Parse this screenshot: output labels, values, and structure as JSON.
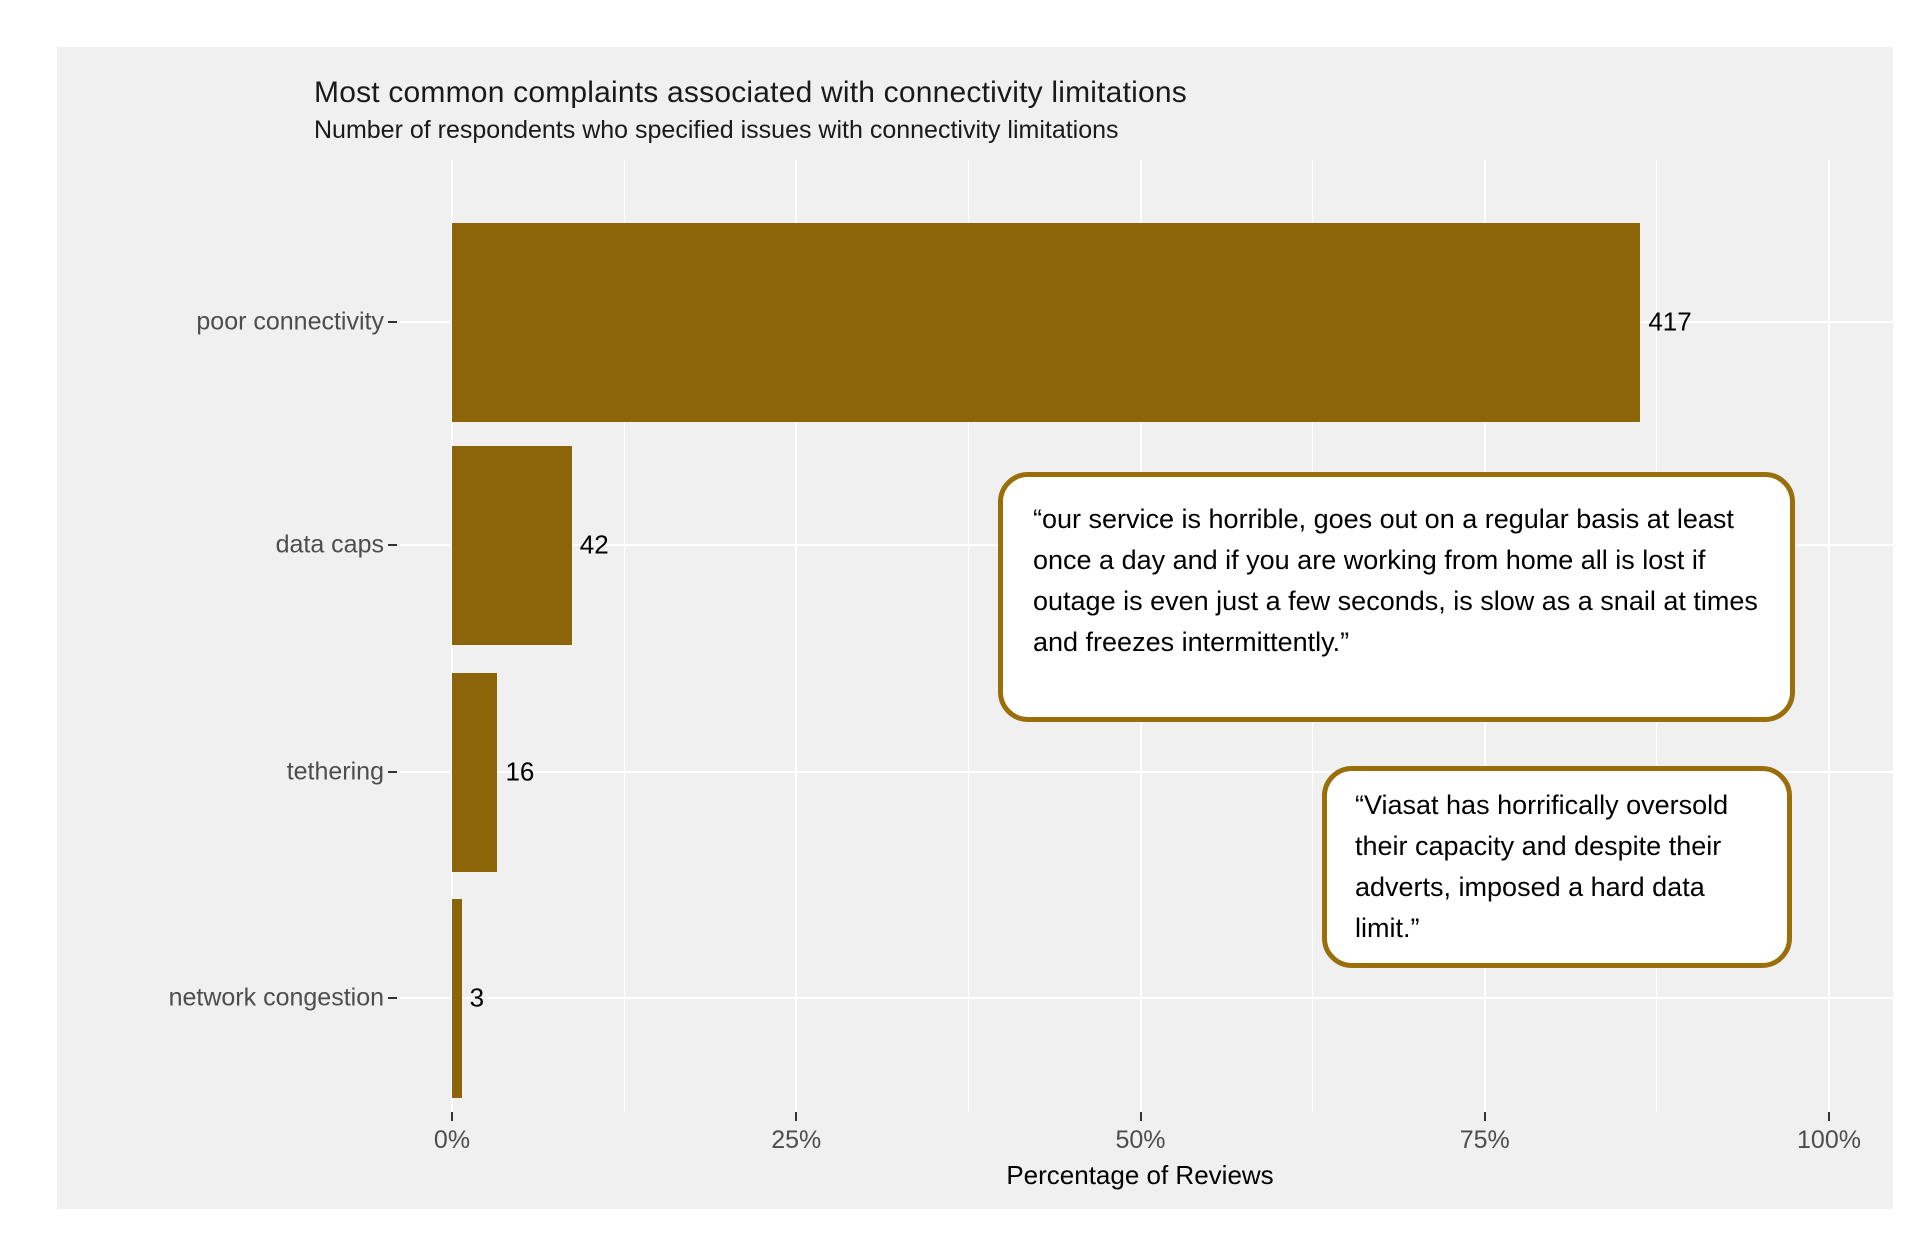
{
  "page": {
    "background_color": "#FFFFFF",
    "panel_background_color": "#F0F0F0",
    "gridline_color": "#FFFFFF",
    "axis_text_color": "#4D4D4D"
  },
  "chart_data": {
    "type": "bar",
    "orientation": "horizontal",
    "title": "Most common complaints associated with connectivity limitations",
    "subtitle": "Number of respondents who specified issues with connectivity limitations",
    "xlabel": "Percentage of Reviews",
    "ylabel": "",
    "categories": [
      "poor connectivity",
      "data caps",
      "tethering",
      "network congestion"
    ],
    "values": [
      417,
      42,
      16,
      3
    ],
    "percent_of_reviews": [
      86.3,
      8.7,
      3.3,
      0.7
    ],
    "value_labels": [
      "417",
      "42",
      "16",
      "3"
    ],
    "x_ticks": [
      {
        "label": "0%",
        "percent": 0
      },
      {
        "label": "25%",
        "percent": 25
      },
      {
        "label": "50%",
        "percent": 50
      },
      {
        "label": "75%",
        "percent": 75
      },
      {
        "label": "100%",
        "percent": 100
      }
    ],
    "x_minor_ticks_percent": [
      12.5,
      37.5,
      62.5,
      87.5
    ],
    "xlim": [
      0,
      105
    ],
    "grid": "white major and minor vertical gridlines, white major horizontal gridlines on gray panel",
    "legend": "none",
    "bar_color": "#8B6508",
    "bar_label_color": "#000000"
  },
  "annotations": [
    {
      "text": "“our service is horrible, goes out on a regular basis at least once a day and if you are working from home all is lost if outage is even just a few seconds, is slow as a snail at times and freezes intermittently.”",
      "border_color": "#9A6F0B"
    },
    {
      "text": "“Viasat has horrifically oversold their capacity and despite their adverts, imposed a hard data limit.”",
      "border_color": "#9A6F0B"
    }
  ]
}
